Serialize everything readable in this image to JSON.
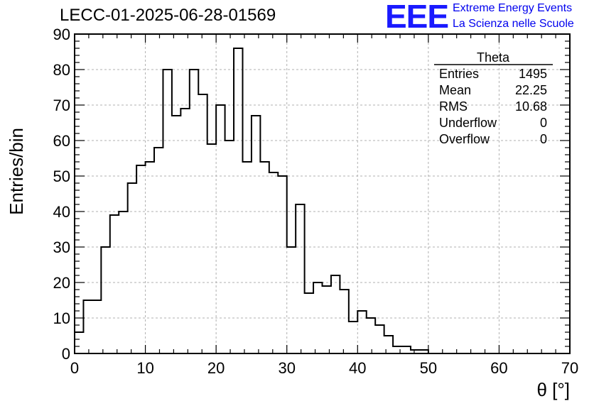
{
  "header": {
    "title": "LECC-01-2025-06-28-01569",
    "logo_text": "EEE",
    "logo_line1": "Extreme Energy Events",
    "logo_line2": "La Scienza nelle Scuole"
  },
  "colors": {
    "logo": "#1a1aff",
    "line": "#000000",
    "grid": "#b0b0b0"
  },
  "chart_data": {
    "type": "bar",
    "title": "LECC-01-2025-06-28-01569",
    "xlabel": "θ [°]",
    "ylabel": "Entries/bin",
    "xlim": [
      0,
      70
    ],
    "ylim": [
      0,
      90
    ],
    "grid": true,
    "bin_width": 1.25,
    "xticks": [
      0,
      10,
      20,
      30,
      40,
      50,
      60,
      70
    ],
    "yticks": [
      0,
      10,
      20,
      30,
      40,
      50,
      60,
      70,
      80,
      90
    ],
    "values": [
      6,
      15,
      15,
      30,
      39,
      40,
      48,
      53,
      54,
      58,
      80,
      67,
      69,
      80,
      73,
      59,
      70,
      60,
      86,
      54,
      67,
      54,
      51,
      50,
      30,
      42,
      17,
      20,
      19,
      22,
      18,
      9,
      12,
      10,
      8,
      5,
      2,
      2,
      1,
      1,
      0,
      0,
      0,
      0,
      0,
      0,
      0,
      0,
      0,
      0,
      0,
      0,
      0,
      0,
      0,
      0
    ],
    "stats": {
      "name": "Theta",
      "rows": [
        {
          "label": "Entries",
          "value": "1495"
        },
        {
          "label": "Mean",
          "value": "22.25"
        },
        {
          "label": "RMS",
          "value": "10.68"
        },
        {
          "label": "Underflow",
          "value": "0"
        },
        {
          "label": "Overflow",
          "value": "0"
        }
      ]
    }
  }
}
